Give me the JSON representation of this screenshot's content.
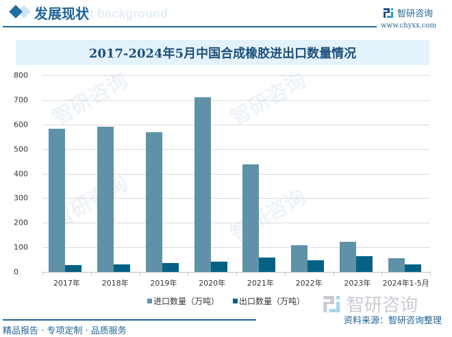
{
  "header": {
    "section_title": "发展现状",
    "ghost_text": "ent background",
    "logo_text": "智研咨询",
    "logo_url": "www.chyxx.com"
  },
  "colors": {
    "brand": "#1e6497",
    "import": "#5f91a8",
    "export": "#046184",
    "title_bg": "#e4f2fb"
  },
  "chart_data": {
    "type": "bar",
    "title": "2017-2024年5月中国合成橡胶进出口数量情况",
    "categories": [
      "2017年",
      "2018年",
      "2019年",
      "2020年",
      "2021年",
      "2022年",
      "2023年",
      "2024年1-5月"
    ],
    "series": [
      {
        "name": "进口数量（万吨）",
        "values": [
          583,
          592,
          570,
          711,
          439,
          109,
          123,
          56
        ]
      },
      {
        "name": "出口数量（万吨）",
        "values": [
          29,
          31,
          36,
          42,
          59,
          48,
          65,
          31
        ]
      }
    ],
    "xlabel": "",
    "ylabel": "",
    "ylim": [
      0,
      800
    ],
    "yticks": [
      0,
      100,
      200,
      300,
      400,
      500,
      600,
      700,
      800
    ],
    "grid": true,
    "legend_position": "bottom"
  },
  "legend": {
    "import_label": "进口数量（万吨）",
    "export_label": "出口数量（万吨）"
  },
  "watermark": {
    "big_text": "智研咨询"
  },
  "footer": {
    "slogan": "精品报告 · 专项定制 · 品质服务",
    "source": "资料来源：智研咨询整理"
  }
}
